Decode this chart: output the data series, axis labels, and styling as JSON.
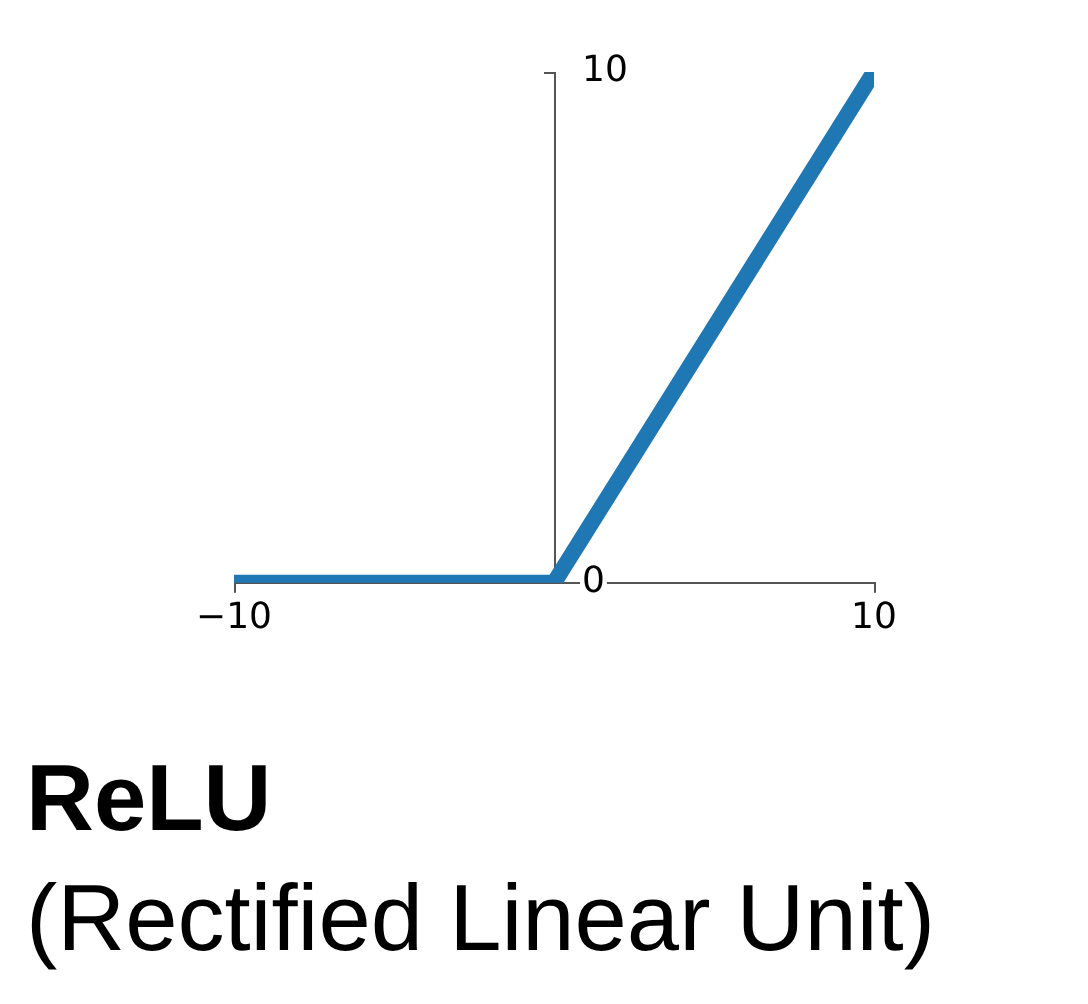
{
  "chart_data": {
    "type": "line",
    "title": "ReLU",
    "subtitle": "(Rectified Linear Unit)",
    "x": [
      -10,
      0,
      10
    ],
    "series": [
      {
        "color": "#1f77b4",
        "values": [
          0,
          0,
          10
        ]
      }
    ],
    "xlim": [
      -10,
      10
    ],
    "ylim": [
      0,
      10
    ],
    "xticks": [
      {
        "value": -10,
        "label": "−10"
      },
      10
    ],
    "yticks": [
      0,
      10
    ],
    "marker": "none",
    "line_style": "solid"
  }
}
